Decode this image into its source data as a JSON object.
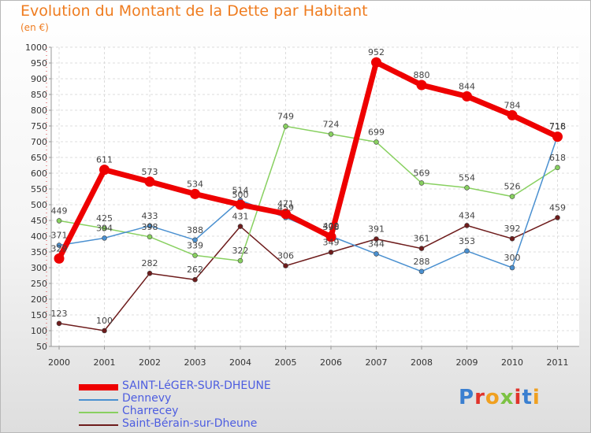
{
  "title": "Evolution du Montant de la Dette par Habitant",
  "unit": "(en €)",
  "logo": "Proxiti",
  "chart_data": {
    "type": "line",
    "title": "Evolution du Montant de la Dette par Habitant",
    "ylabel": "(en €)",
    "x": [
      "2000",
      "2001",
      "2002",
      "2003",
      "2004",
      "2005",
      "2006",
      "2007",
      "2008",
      "2009",
      "2010",
      "2011"
    ],
    "ylim": [
      50,
      1000
    ],
    "yticks": [
      50,
      100,
      150,
      200,
      250,
      300,
      350,
      400,
      450,
      500,
      550,
      600,
      650,
      700,
      750,
      800,
      850,
      900,
      950,
      1000
    ],
    "grid": true,
    "legend": "bottom-left",
    "series": [
      {
        "name": "SAINT-LéGER-SUR-DHEUNE",
        "color": "#ee0000",
        "values": [
          329,
          611,
          573,
          534,
          500,
          471,
          398,
          952,
          880,
          844,
          784,
          716
        ],
        "labels": [
          "329",
          "611",
          "573",
          "534",
          "500",
          "471",
          "398",
          "952",
          "880",
          "844",
          "784",
          "716"
        ]
      },
      {
        "name": "Dennevy",
        "color": "#4a90d0",
        "values": [
          371,
          394,
          433,
          388,
          514,
          459,
          400,
          344,
          288,
          353,
          300,
          718
        ],
        "labels": [
          "371",
          "394",
          "433",
          "388",
          "514",
          "459",
          "400",
          "344",
          "288",
          "353",
          "300",
          "718"
        ]
      },
      {
        "name": "Charrecey",
        "color": "#88d060",
        "values": [
          449,
          425,
          398,
          339,
          322,
          749,
          724,
          699,
          569,
          554,
          526,
          618
        ],
        "labels": [
          "449",
          "425",
          "398",
          "339",
          "322",
          "749",
          "724",
          "699",
          "569",
          "554",
          "526",
          "618"
        ]
      },
      {
        "name": "Saint-Bérain-sur-Dheune",
        "color": "#6e1c1c",
        "values": [
          123,
          100,
          282,
          262,
          431,
          306,
          349,
          391,
          361,
          434,
          392,
          459
        ],
        "labels": [
          "123",
          "100",
          "282",
          "262",
          "431",
          "306",
          "349",
          "391",
          "361",
          "434",
          "392",
          "459"
        ]
      }
    ]
  }
}
